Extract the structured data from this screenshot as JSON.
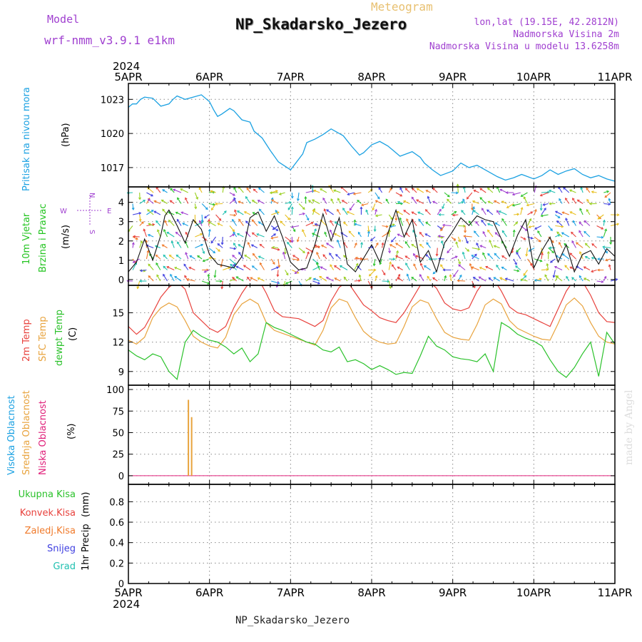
{
  "header": {
    "model_label": "Model",
    "model_value": "wrf-nmm_v3.9.1  e1km",
    "product": "Meteogram",
    "title": "NP_Skadarsko_Jezero",
    "lonlat": "lon,lat (19.15E, 42.2812N)",
    "elevation": "Nadmorska Visina 2m",
    "model_elevation": "Nadmorska Visina u modelu 13.6258m",
    "credit": "made by Angel",
    "footer": "NP_Skadarsko_Jezero"
  },
  "colors": {
    "pressure": "#1ba1e2",
    "temp2m": "#e8423d",
    "sfc": "#e8a33d",
    "dewpt": "#2bc22b",
    "wind_title": "#22c41f",
    "purple": "#a040d0",
    "visoka": "#1ba1e2",
    "srednja": "#e8a33d",
    "niska": "#e0207a",
    "ukupna": "#2bc22b",
    "konvek": "#e8423d",
    "zaledj": "#f07a2a",
    "snijeg": "#4040e0",
    "grad": "#20c0b0"
  },
  "chart_data": [
    {
      "type": "line",
      "panel": "pressure",
      "year": "2024",
      "x_ticks": [
        "5APR",
        "6APR",
        "7APR",
        "8APR",
        "9APR",
        "10APR",
        "11APR"
      ],
      "ylabel_series": "Pritisak na nivou mora",
      "unit": "(hPa)",
      "yticks": [
        1017,
        1020,
        1023
      ],
      "ylim": [
        1015.3,
        1024.4
      ],
      "x": [
        0,
        0.05,
        0.1,
        0.15,
        0.2,
        0.3,
        0.4,
        0.5,
        0.55,
        0.6,
        0.7,
        0.8,
        0.9,
        1.0,
        1.05,
        1.1,
        1.15,
        1.25,
        1.3,
        1.4,
        1.5,
        1.55,
        1.65,
        1.75,
        1.85,
        2.0,
        2.15,
        2.2,
        2.3,
        2.4,
        2.5,
        2.65,
        2.75,
        2.85,
        2.9,
        3.0,
        3.1,
        3.2,
        3.25,
        3.35,
        3.5,
        3.6,
        3.65,
        3.75,
        3.85,
        4.0,
        4.1,
        4.2,
        4.3,
        4.4,
        4.55,
        4.65,
        4.75,
        4.85,
        5.0,
        5.1,
        5.2,
        5.3,
        5.4,
        5.5,
        5.6,
        5.7,
        5.8,
        5.9,
        6.0
      ],
      "series": [
        {
          "values": [
            1022.3,
            1022.6,
            1022.6,
            1023.0,
            1023.2,
            1023.1,
            1022.4,
            1022.6,
            1023.0,
            1023.3,
            1023.0,
            1023.2,
            1023.4,
            1022.8,
            1022.1,
            1021.5,
            1021.7,
            1022.2,
            1022.0,
            1021.2,
            1021.0,
            1020.2,
            1019.6,
            1018.5,
            1017.5,
            1016.8,
            1018.2,
            1019.2,
            1019.5,
            1019.9,
            1020.4,
            1019.8,
            1018.9,
            1018.1,
            1018.3,
            1019.0,
            1019.3,
            1018.9,
            1018.6,
            1018.0,
            1018.4,
            1017.9,
            1017.4,
            1016.8,
            1016.3,
            1016.7,
            1017.4,
            1017.0,
            1017.2,
            1016.8,
            1016.2,
            1015.9,
            1016.1,
            1016.4,
            1016.0,
            1016.3,
            1016.8,
            1016.4,
            1016.7,
            1016.9,
            1016.4,
            1016.1,
            1016.3,
            1016.0,
            1015.8
          ]
        }
      ]
    },
    {
      "type": "line",
      "panel": "wind",
      "title": "10m Vjetar",
      "subtitle": "Brzina i Pravac",
      "unit": "(m/s)",
      "compass": {
        "n": "N",
        "w": "W",
        "e": "E",
        "s": "S"
      },
      "yticks": [
        0,
        1,
        2,
        3,
        4
      ],
      "ylim": [
        -0.3,
        4.8
      ],
      "x": [
        0,
        0.1,
        0.2,
        0.3,
        0.4,
        0.45,
        0.5,
        0.6,
        0.7,
        0.8,
        0.9,
        1.0,
        1.1,
        1.2,
        1.3,
        1.4,
        1.5,
        1.6,
        1.7,
        1.8,
        1.9,
        2.0,
        2.1,
        2.2,
        2.3,
        2.4,
        2.5,
        2.6,
        2.7,
        2.8,
        2.9,
        3.0,
        3.1,
        3.2,
        3.3,
        3.4,
        3.5,
        3.6,
        3.7,
        3.8,
        3.9,
        4.0,
        4.1,
        4.2,
        4.3,
        4.4,
        4.5,
        4.6,
        4.7,
        4.8,
        4.9,
        5.0,
        5.1,
        5.2,
        5.3,
        5.4,
        5.5,
        5.6,
        5.7,
        5.8,
        5.9,
        6.0
      ],
      "series": [
        {
          "values": [
            0.4,
            0.9,
            2.1,
            1.0,
            2.3,
            3.3,
            3.6,
            2.8,
            1.9,
            3.1,
            2.6,
            1.3,
            0.8,
            0.7,
            0.6,
            1.2,
            3.2,
            3.5,
            2.5,
            3.3,
            2.2,
            0.9,
            0.5,
            0.6,
            1.8,
            3.4,
            2.0,
            3.2,
            0.8,
            0.4,
            1.1,
            1.8,
            0.9,
            2.4,
            3.6,
            2.2,
            3.1,
            0.9,
            1.5,
            0.4,
            1.9,
            2.5,
            3.2,
            2.8,
            3.3,
            3.1,
            3.0,
            2.1,
            1.2,
            2.3,
            3.1,
            0.6,
            1.5,
            2.2,
            0.9,
            1.8,
            0.4,
            1.3,
            1.5,
            0.8,
            1.6,
            1.2
          ]
        }
      ]
    },
    {
      "type": "line",
      "panel": "temperature",
      "unit": "(C)",
      "yticks": [
        9,
        12,
        15
      ],
      "ylim": [
        7.6,
        17.8
      ],
      "x": [
        0,
        0.1,
        0.2,
        0.3,
        0.4,
        0.5,
        0.6,
        0.7,
        0.8,
        0.9,
        1.0,
        1.1,
        1.2,
        1.3,
        1.4,
        1.5,
        1.6,
        1.7,
        1.8,
        1.9,
        2.0,
        2.1,
        2.2,
        2.3,
        2.4,
        2.5,
        2.6,
        2.7,
        2.8,
        2.9,
        3.0,
        3.1,
        3.2,
        3.3,
        3.4,
        3.5,
        3.6,
        3.7,
        3.8,
        3.9,
        4.0,
        4.1,
        4.2,
        4.3,
        4.4,
        4.5,
        4.6,
        4.7,
        4.8,
        4.9,
        5.0,
        5.1,
        5.2,
        5.3,
        5.4,
        5.5,
        5.6,
        5.7,
        5.8,
        5.9,
        6.0
      ],
      "series": [
        {
          "name": "2m Temp",
          "values": [
            13.6,
            12.8,
            13.5,
            15.0,
            16.6,
            17.6,
            18.2,
            17.4,
            15.0,
            14.2,
            13.4,
            13.0,
            13.6,
            15.5,
            17.0,
            18.2,
            18.5,
            17.0,
            15.2,
            14.6,
            14.5,
            14.4,
            14.0,
            13.6,
            14.2,
            16.2,
            17.6,
            18.2,
            17.0,
            15.8,
            15.2,
            14.5,
            14.2,
            14.0,
            15.0,
            16.4,
            17.8,
            18.3,
            17.5,
            16.0,
            15.4,
            15.2,
            15.5,
            17.2,
            18.4,
            18.5,
            17.2,
            15.6,
            15.0,
            14.8,
            14.4,
            14.0,
            13.6,
            15.4,
            17.2,
            18.4,
            18.2,
            16.8,
            15.0,
            14.1,
            14.0
          ]
        },
        {
          "name": "SFC Temp",
          "values": [
            12.2,
            11.8,
            12.5,
            14.5,
            15.5,
            16.0,
            15.6,
            14.2,
            12.6,
            12.0,
            11.6,
            11.4,
            12.5,
            14.8,
            15.9,
            16.4,
            15.9,
            14.0,
            13.2,
            12.9,
            12.6,
            12.3,
            12.0,
            11.7,
            13.2,
            15.5,
            16.4,
            16.1,
            14.5,
            13.1,
            12.4,
            12.0,
            11.8,
            11.9,
            13.6,
            15.6,
            16.3,
            16.0,
            14.4,
            13.0,
            12.5,
            12.3,
            12.2,
            13.8,
            15.8,
            16.4,
            15.9,
            14.2,
            13.4,
            13.0,
            12.6,
            12.3,
            12.2,
            13.9,
            15.8,
            16.5,
            15.7,
            14.0,
            12.6,
            12.0,
            11.8
          ]
        },
        {
          "name": "dewpt Temp",
          "values": [
            11.2,
            10.6,
            10.2,
            10.8,
            10.5,
            9.0,
            8.2,
            12.0,
            13.2,
            12.6,
            12.2,
            12.0,
            11.5,
            10.8,
            11.4,
            10.0,
            10.8,
            14.0,
            13.5,
            13.2,
            12.8,
            12.4,
            12.0,
            11.8,
            11.2,
            11.0,
            11.5,
            10.0,
            10.2,
            9.8,
            9.2,
            9.6,
            9.2,
            8.7,
            8.9,
            8.8,
            10.6,
            12.6,
            11.6,
            11.2,
            10.5,
            10.3,
            10.2,
            10.0,
            10.8,
            9.0,
            14.0,
            13.5,
            12.8,
            12.4,
            12.1,
            11.6,
            10.2,
            9.0,
            8.4,
            9.4,
            10.8,
            12.0,
            8.5,
            13.0,
            11.8
          ]
        }
      ]
    },
    {
      "type": "bar",
      "panel": "clouds",
      "unit": "(%)",
      "yticks": [
        0,
        25,
        50,
        75,
        100
      ],
      "ylim": [
        -10,
        105
      ],
      "series": [
        {
          "name": "Visoka Oblacnost",
          "x": [],
          "values": []
        },
        {
          "name": "Srednja Oblacnost",
          "x": [
            0.74,
            0.78
          ],
          "values": [
            88,
            68
          ]
        },
        {
          "name": "Niska Oblacnost",
          "x": [],
          "values": []
        }
      ]
    },
    {
      "type": "bar",
      "panel": "precip",
      "title": "1hr Precip",
      "unit": "(mm)",
      "yticks": [
        0,
        0.2,
        0.4,
        0.6,
        0.8
      ],
      "yticklabels": [
        "0",
        "0.2",
        "0.4",
        "0.6",
        "0.8"
      ],
      "ylim": [
        0,
        0.97
      ],
      "series": [
        {
          "name": "Ukupna Kisa",
          "x": [],
          "values": []
        },
        {
          "name": "Konvek.Kisa",
          "x": [],
          "values": []
        },
        {
          "name": "Zaledj.Kisa",
          "x": [],
          "values": []
        },
        {
          "name": "Snijeg",
          "x": [],
          "values": []
        },
        {
          "name": "Grad",
          "x": [],
          "values": []
        }
      ]
    }
  ]
}
